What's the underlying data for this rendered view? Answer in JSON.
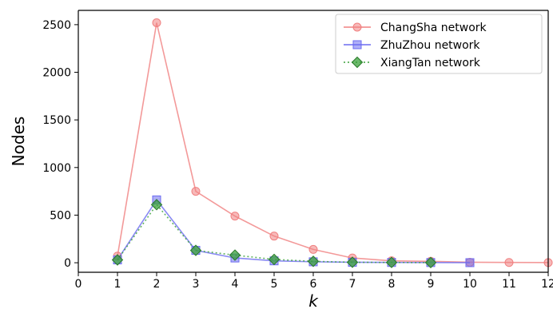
{
  "chart_data": {
    "type": "line",
    "title": "",
    "xlabel": "k",
    "ylabel": "Nodes",
    "xlim": [
      0,
      12
    ],
    "ylim": [
      -100,
      2650
    ],
    "xticks": [
      0,
      1,
      2,
      3,
      4,
      5,
      6,
      7,
      8,
      9,
      10,
      11,
      12
    ],
    "yticks": [
      0,
      500,
      1000,
      1500,
      2000,
      2500
    ],
    "grid": false,
    "legend_position": "top-right",
    "series": [
      {
        "name": "ChangSha network",
        "color": "#f08080",
        "marker": "circle",
        "line_style": "solid",
        "x": [
          1,
          2,
          3,
          4,
          5,
          6,
          7,
          8,
          9,
          10,
          11,
          12
        ],
        "y": [
          70,
          2520,
          750,
          490,
          280,
          140,
          50,
          20,
          15,
          5,
          3,
          2
        ]
      },
      {
        "name": "ZhuZhou network",
        "color": "#6b6bf0",
        "marker": "square",
        "line_style": "solid",
        "x": [
          1,
          2,
          3,
          4,
          5,
          6,
          7,
          8,
          9,
          10
        ],
        "y": [
          30,
          660,
          130,
          50,
          20,
          10,
          5,
          3,
          2,
          1
        ]
      },
      {
        "name": "XiangTan network",
        "color": "#3aa03a",
        "marker": "diamond",
        "line_style": "dotted",
        "x": [
          1,
          2,
          3,
          4,
          5,
          6,
          7,
          8,
          9
        ],
        "y": [
          30,
          610,
          130,
          80,
          35,
          15,
          5,
          3,
          2
        ]
      }
    ]
  }
}
